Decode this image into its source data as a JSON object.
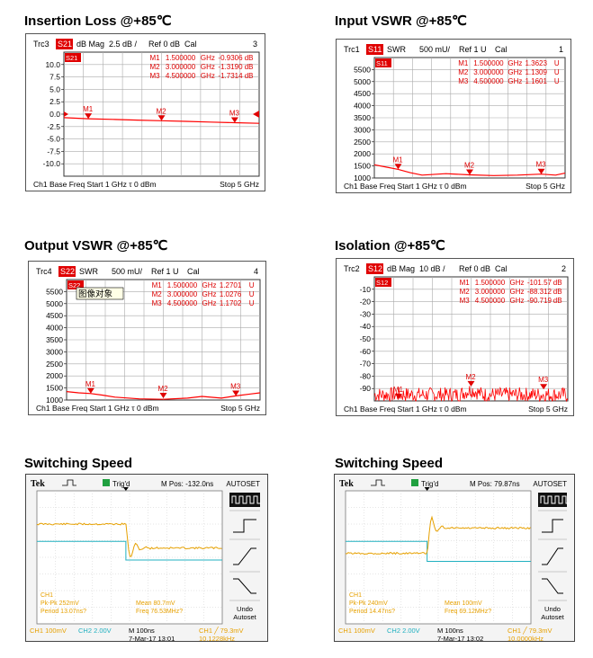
{
  "chart_data": [
    {
      "type": "line",
      "title": "Insertion Loss @+85℃",
      "trace": "Trc3",
      "param": "S21",
      "format": "dB Mag",
      "scale": "2.5 dB /",
      "ref": "Ref 0 dB",
      "cal": "Cal",
      "channel_no": "3",
      "active_label": "S21",
      "footer": {
        "left": "Ch1  Base Freq  Start  1 GHz τ  0 dBm",
        "right": "Stop  5 GHz"
      },
      "yticks": [
        "10.0",
        "7.5",
        "5.0",
        "2.5",
        "0.0",
        "-2.5",
        "-5.0",
        "-7.5",
        "-10.0"
      ],
      "ylim": [
        -12.5,
        12.5
      ],
      "xlim": [
        1,
        5
      ],
      "ref_level": 0,
      "markers": [
        {
          "id": "M1",
          "x": 1.5,
          "value": "-0.9306 dB",
          "y": -0.93
        },
        {
          "id": "M2",
          "x": 3.0,
          "value": "-1.3190 dB",
          "y": -1.32
        },
        {
          "id": "M3",
          "x": 4.5,
          "value": "-1.7314 dB",
          "y": -1.73
        }
      ],
      "marker_rows": [
        {
          "label": "M1",
          "freq": "1.500000",
          "unit": "GHz",
          "value": "-0.9306",
          "vunit": "dB"
        },
        {
          "label": "M2",
          "freq": "3.000000",
          "unit": "GHz",
          "value": "-1.3190",
          "vunit": "dB"
        },
        {
          "label": "M3",
          "freq": "4.500000",
          "unit": "GHz",
          "value": "-1.7314",
          "vunit": "dB"
        }
      ],
      "series": [
        {
          "x": [
            1.0,
            1.5,
            2.0,
            2.5,
            3.0,
            3.5,
            4.0,
            4.5,
            5.0
          ],
          "values": [
            -0.7,
            -0.93,
            -1.05,
            -1.2,
            -1.32,
            -1.45,
            -1.6,
            -1.73,
            -1.85
          ]
        }
      ],
      "color": "#ff0000"
    },
    {
      "type": "line",
      "title": "Input VSWR @+85℃",
      "trace": "Trc1",
      "param": "S11",
      "format": "SWR",
      "scale": "500 mU/",
      "ref": "Ref 1 U",
      "cal": "Cal",
      "channel_no": "1",
      "active_label": "S11",
      "footer": {
        "left": "Ch1  Base Freq  Start  1 GHz τ  0 dBm",
        "right": "Stop  5 GHz"
      },
      "yticks": [
        "5500",
        "5000",
        "4500",
        "4000",
        "3500",
        "3000",
        "2500",
        "2000",
        "1500",
        "1000"
      ],
      "ylim": [
        1,
        6
      ],
      "xlim": [
        1,
        5
      ],
      "markers": [
        {
          "id": "M1",
          "x": 1.5,
          "y": 1.3623
        },
        {
          "id": "M2",
          "x": 3.0,
          "y": 1.1309
        },
        {
          "id": "M3",
          "x": 4.5,
          "y": 1.1601
        }
      ],
      "marker_rows": [
        {
          "label": "M1",
          "freq": "1.500000",
          "unit": "GHz",
          "value": "1.3623",
          "vunit": "U"
        },
        {
          "label": "M2",
          "freq": "3.000000",
          "unit": "GHz",
          "value": "1.1309",
          "vunit": "U"
        },
        {
          "label": "M3",
          "freq": "4.500000",
          "unit": "GHz",
          "value": "1.1601",
          "vunit": "U"
        }
      ],
      "series": [
        {
          "x": [
            1.0,
            1.25,
            1.5,
            1.75,
            2.0,
            2.5,
            3.0,
            3.5,
            4.0,
            4.5,
            4.8,
            5.0
          ],
          "values": [
            1.55,
            1.45,
            1.36,
            1.22,
            1.12,
            1.18,
            1.13,
            1.1,
            1.12,
            1.16,
            1.12,
            1.2
          ]
        }
      ],
      "color": "#ff0000"
    },
    {
      "type": "line",
      "title": "Output VSWR @+85℃",
      "trace": "Trc4",
      "param": "S22",
      "format": "SWR",
      "scale": "500 mU/",
      "ref": "Ref 1 U",
      "cal": "Cal",
      "channel_no": "4",
      "active_label": "S22",
      "tooltip": "图像对象",
      "footer": {
        "left": "Ch1  Base Freq  Start  1 GHz τ  0 dBm",
        "right": "Stop  5 GHz"
      },
      "yticks": [
        "5500",
        "5000",
        "4500",
        "4000",
        "3500",
        "3000",
        "2500",
        "2000",
        "1500",
        "1000"
      ],
      "ylim": [
        1,
        6
      ],
      "xlim": [
        1,
        5
      ],
      "markers": [
        {
          "id": "M1",
          "x": 1.5,
          "y": 1.2701
        },
        {
          "id": "M2",
          "x": 3.0,
          "y": 1.0276
        },
        {
          "id": "M3",
          "x": 4.5,
          "y": 1.1702
        }
      ],
      "marker_rows": [
        {
          "label": "M1",
          "freq": "1.500000",
          "unit": "GHz",
          "value": "1.2701",
          "vunit": "U"
        },
        {
          "label": "M2",
          "freq": "3.000000",
          "unit": "GHz",
          "value": "1.0276",
          "vunit": "U"
        },
        {
          "label": "M3",
          "freq": "4.500000",
          "unit": "GHz",
          "value": "1.1702",
          "vunit": "U"
        }
      ],
      "series": [
        {
          "x": [
            1.0,
            1.25,
            1.5,
            1.75,
            2.0,
            2.5,
            3.0,
            3.5,
            3.8,
            4.2,
            4.5,
            4.8,
            5.0
          ],
          "values": [
            1.35,
            1.3,
            1.27,
            1.2,
            1.12,
            1.05,
            1.03,
            1.08,
            1.15,
            1.08,
            1.17,
            1.25,
            1.3
          ]
        }
      ],
      "color": "#ff0000"
    },
    {
      "type": "line",
      "title": "Isolation @+85℃",
      "trace": "Trc2",
      "param": "S12",
      "format": "dB Mag",
      "scale": "10 dB /",
      "ref": "Ref 0 dB",
      "cal": "Cal",
      "channel_no": "2",
      "active_label": "S12",
      "footer": {
        "left": "Ch1  Base Freq  Start  1 GHz τ  0 dBm",
        "right": "Stop  5 GHz"
      },
      "yticks": [
        "-10",
        "-20",
        "-30",
        "-40",
        "-50",
        "-60",
        "-70",
        "-80",
        "-90"
      ],
      "ylim": [
        -100,
        0
      ],
      "xlim": [
        1,
        5
      ],
      "markers": [
        {
          "id": "M1",
          "x": 1.5,
          "y": -101.57
        },
        {
          "id": "M2",
          "x": 3.0,
          "y": -88.312
        },
        {
          "id": "M3",
          "x": 4.5,
          "y": -90.719
        }
      ],
      "marker_rows": [
        {
          "label": "M1",
          "freq": "1.500000",
          "unit": "GHz",
          "value": "-101.57",
          "vunit": "dB"
        },
        {
          "label": "M2",
          "freq": "3.000000",
          "unit": "GHz",
          "value": "-88.312",
          "vunit": "dB"
        },
        {
          "label": "M3",
          "freq": "4.500000",
          "unit": "GHz",
          "value": "-90.719",
          "vunit": "dB"
        }
      ],
      "noise": {
        "mean": -95,
        "amplitude": 6
      },
      "color": "#ff0000"
    },
    {
      "type": "line",
      "title": "Switching Speed",
      "brand": "Tek",
      "status": "Trig'd",
      "mpos": "M Pos: -132.0ns",
      "autoset": "AUTOSET",
      "right_menu": {
        "undo": "Undo",
        "autoset": "Autoset"
      },
      "measurements": {
        "ch1": "CH1",
        "pkpk": "Pk-Pk 252mV",
        "period": "Period 13.07ns?",
        "mean": "Mean 80.7mV",
        "freq": "Freq 76.53MHz?"
      },
      "bottom": {
        "ch1": "CH1  100mV",
        "ch2": "CH2  2.00V",
        "time": "M 100ns",
        "date": "7-Mar-17 13:01",
        "trig": "CH1  ╱ 79.3mV",
        "freq": "10.1228kHz"
      },
      "ch2_level_before": 0.62,
      "ch2_level_after": 0.48,
      "ch1_level_before": 0.75,
      "ch1_level_after": 0.57,
      "edge_position": 0.48,
      "colors": {
        "ch1": "#e6a000",
        "ch2": "#20b0c0"
      }
    },
    {
      "type": "line",
      "title": "Switching Speed",
      "brand": "Tek",
      "status": "Trig'd",
      "mpos": "M Pos: 79.87ns",
      "autoset": "AUTOSET",
      "right_menu": {
        "undo": "Undo",
        "autoset": "Autoset"
      },
      "measurements": {
        "ch1": "CH1",
        "pkpk": "Pk-Pk 240mV",
        "period": "Period 14.47ns?",
        "mean": "Mean 100mV",
        "freq": "Freq 69.12MHz?"
      },
      "bottom": {
        "ch1": "CH1  100mV",
        "ch2": "CH2  2.00V",
        "time": "M 100ns",
        "date": "7-Mar-17 13:02",
        "trig": "CH1  ╱ 79.3mV",
        "freq": "10.0000kHz"
      },
      "ch2_level_before": 0.62,
      "ch2_level_after": 0.47,
      "ch1_level_before": 0.53,
      "ch1_level_after": 0.72,
      "edge_position": 0.44,
      "colors": {
        "ch1": "#e6a000",
        "ch2": "#20b0c0"
      }
    }
  ]
}
